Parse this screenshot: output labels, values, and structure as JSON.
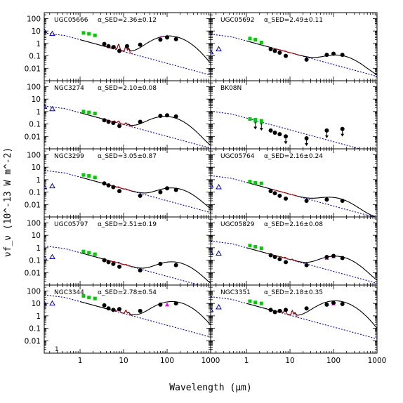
{
  "figure": {
    "xlabel": "Wavelength (μm)",
    "ylabel": "νf_ν (10^-13 W m^-2)",
    "corner_label": "1",
    "x_tick_labels": [
      "1",
      "10",
      "100",
      "1000"
    ],
    "y_tick_labels": [
      "100",
      "10",
      "1",
      "0.1",
      "0.01"
    ],
    "colors": {
      "model": "#000000",
      "stellar": "#0000cc",
      "pah": "#cc0000",
      "nir": "#00cc00",
      "far_ir_model": "#ff00ff",
      "data": "#000000"
    }
  },
  "chart_data": {
    "type": "scatter",
    "layout": "5 rows x 2 columns of SED panels",
    "x_scale": "log",
    "y_scale": "log",
    "xlim": [
      0.15,
      1000
    ],
    "ylim": [
      0.001,
      300
    ],
    "panels": [
      {
        "name": "UGC05666",
        "alpha_label": "α_SED=2.36±0.12",
        "norm": 2.0,
        "dust_norm": 4.0,
        "peak_um": 110,
        "uv": [
          [
            0.15,
            10
          ],
          [
            0.23,
            6
          ]
        ],
        "nir": [
          [
            1.2,
            7
          ],
          [
            1.6,
            6
          ],
          [
            2.2,
            4.5
          ]
        ],
        "fir_model": [
          [
            70,
            2.8
          ],
          [
            100,
            3.6
          ]
        ],
        "points": [
          [
            3.6,
            0.9
          ],
          [
            4.5,
            0.6
          ],
          [
            5.8,
            0.5
          ],
          [
            8,
            0.25
          ],
          [
            12,
            0.6
          ],
          [
            24,
            0.8
          ],
          [
            70,
            2.0
          ],
          [
            100,
            3.0
          ],
          [
            160,
            2.2
          ]
        ],
        "upper_limits": []
      },
      {
        "name": "UGC05692",
        "alpha_label": "α_SED=2.49±0.11",
        "norm": 1.6,
        "dust_norm": 0.1,
        "peak_um": 120,
        "uv": [
          [
            0.15,
            0.2
          ],
          [
            0.23,
            0.35
          ]
        ],
        "nir": [
          [
            1.2,
            2.5
          ],
          [
            1.6,
            2.0
          ],
          [
            2.2,
            1.2
          ]
        ],
        "fir_model": [],
        "points": [
          [
            3.6,
            0.35
          ],
          [
            4.5,
            0.25
          ],
          [
            5.8,
            0.18
          ],
          [
            8,
            0.1
          ],
          [
            24,
            0.05
          ],
          [
            70,
            0.12
          ],
          [
            100,
            0.15
          ],
          [
            160,
            0.12
          ]
        ],
        "upper_limits": []
      },
      {
        "name": "NGC3274",
        "alpha_label": "α_SED=2.10±0.08",
        "norm": 0.8,
        "dust_norm": 0.4,
        "peak_um": 90,
        "uv": [
          [
            0.15,
            2.5
          ],
          [
            0.23,
            1.6
          ]
        ],
        "nir": [
          [
            1.2,
            1.0
          ],
          [
            1.6,
            0.85
          ],
          [
            2.2,
            0.7
          ]
        ],
        "fir_model": [
          [
            100,
            0.5
          ]
        ],
        "points": [
          [
            3.6,
            0.2
          ],
          [
            4.5,
            0.15
          ],
          [
            5.8,
            0.12
          ],
          [
            8,
            0.07
          ],
          [
            24,
            0.15
          ],
          [
            70,
            0.45
          ],
          [
            100,
            0.5
          ],
          [
            160,
            0.4
          ]
        ],
        "upper_limits": []
      },
      {
        "name": "BK08N",
        "alpha_label": "",
        "norm": 0.3,
        "dust_norm": 0.0,
        "peak_um": 100,
        "uv": [],
        "nir": [
          [
            1.2,
            0.25
          ],
          [
            1.6,
            0.22
          ],
          [
            2.2,
            0.18
          ]
        ],
        "fir_model": [],
        "points": [
          [
            3.6,
            0.03
          ],
          [
            4.5,
            0.02
          ],
          [
            5.8,
            0.015
          ]
        ],
        "upper_limits": [
          [
            1.6,
            0.15
          ],
          [
            2.2,
            0.12
          ],
          [
            8,
            0.01
          ],
          [
            24,
            0.007
          ],
          [
            70,
            0.03
          ],
          [
            160,
            0.04
          ]
        ]
      },
      {
        "name": "NGC3299",
        "alpha_label": "α_SED=3.05±0.87",
        "norm": 1.6,
        "dust_norm": 0.2,
        "peak_um": 130,
        "uv": [
          [
            0.15,
            0.25
          ],
          [
            0.23,
            0.3
          ]
        ],
        "nir": [
          [
            1.2,
            2.4
          ],
          [
            1.6,
            2.0
          ],
          [
            2.2,
            1.5
          ]
        ],
        "fir_model": [],
        "points": [
          [
            3.6,
            0.5
          ],
          [
            4.5,
            0.35
          ],
          [
            5.8,
            0.25
          ],
          [
            8,
            0.12
          ],
          [
            24,
            0.05
          ],
          [
            70,
            0.1
          ],
          [
            100,
            0.2
          ],
          [
            160,
            0.15
          ]
        ],
        "upper_limits": []
      },
      {
        "name": "UGC05764",
        "alpha_label": "α_SED=2.16±0.24",
        "norm": 0.6,
        "dust_norm": 0.03,
        "peak_um": 90,
        "uv": [
          [
            0.15,
            0.35
          ],
          [
            0.23,
            0.25
          ]
        ],
        "nir": [
          [
            1.2,
            0.7
          ],
          [
            1.6,
            0.55
          ],
          [
            2.2,
            0.5
          ]
        ],
        "fir_model": [],
        "points": [
          [
            3.6,
            0.12
          ],
          [
            4.5,
            0.08
          ],
          [
            5.8,
            0.05
          ],
          [
            8,
            0.03
          ],
          [
            24,
            0.02
          ],
          [
            70,
            0.025
          ],
          [
            160,
            0.02
          ]
        ],
        "upper_limits": []
      },
      {
        "name": "UGC05797",
        "alpha_label": "α_SED=2.51±0.19",
        "norm": 0.4,
        "dust_norm": 0.07,
        "peak_um": 130,
        "uv": [
          [
            0.15,
            0.15
          ],
          [
            0.23,
            0.18
          ]
        ],
        "nir": [
          [
            1.2,
            0.5
          ],
          [
            1.6,
            0.4
          ],
          [
            2.2,
            0.3
          ]
        ],
        "fir_model": [],
        "points": [
          [
            3.6,
            0.1
          ],
          [
            4.5,
            0.07
          ],
          [
            5.8,
            0.05
          ],
          [
            8,
            0.03
          ],
          [
            24,
            0.015
          ],
          [
            70,
            0.05
          ],
          [
            160,
            0.04
          ]
        ],
        "upper_limits": []
      },
      {
        "name": "UGC05829",
        "alpha_label": "α_SED=2.16±0.08",
        "norm": 1.0,
        "dust_norm": 0.2,
        "peak_um": 110,
        "uv": [
          [
            0.15,
            0.4
          ],
          [
            0.23,
            0.35
          ]
        ],
        "nir": [
          [
            1.2,
            1.5
          ],
          [
            1.6,
            1.2
          ],
          [
            2.2,
            0.9
          ]
        ],
        "fir_model": [
          [
            70,
            0.15
          ],
          [
            100,
            0.2
          ]
        ],
        "points": [
          [
            3.6,
            0.25
          ],
          [
            4.5,
            0.18
          ],
          [
            5.8,
            0.12
          ],
          [
            8,
            0.07
          ],
          [
            24,
            0.04
          ],
          [
            70,
            0.18
          ],
          [
            100,
            0.22
          ],
          [
            160,
            0.15
          ]
        ],
        "upper_limits": []
      },
      {
        "name": "NGC3344",
        "alpha_label": "α_SED=2.78±0.54",
        "norm": 14.0,
        "dust_norm": 14.0,
        "peak_um": 130,
        "uv": [
          [
            0.15,
            10
          ],
          [
            0.23,
            10
          ]
        ],
        "nir": [
          [
            1.2,
            40
          ],
          [
            1.6,
            30
          ],
          [
            2.2,
            25
          ]
        ],
        "fir_model": [
          [
            100,
            8
          ]
        ],
        "points": [
          [
            3.6,
            7
          ],
          [
            4.5,
            4
          ],
          [
            5.8,
            3
          ],
          [
            8,
            3.5
          ],
          [
            24,
            2.5
          ],
          [
            70,
            8
          ],
          [
            160,
            10
          ]
        ],
        "upper_limits": []
      },
      {
        "name": "NGC3351",
        "alpha_label": "α_SED=2.18±0.35",
        "norm": 10.0,
        "dust_norm": 16.0,
        "peak_um": 110,
        "uv": [
          [
            0.15,
            3
          ],
          [
            0.23,
            5
          ]
        ],
        "nir": [
          [
            1.2,
            15
          ],
          [
            1.6,
            12
          ],
          [
            2.2,
            10
          ]
        ],
        "fir_model": [
          [
            100,
            10
          ]
        ],
        "points": [
          [
            3.6,
            3
          ],
          [
            4.5,
            2
          ],
          [
            5.8,
            2.5
          ],
          [
            8,
            3
          ],
          [
            24,
            4
          ],
          [
            70,
            8
          ],
          [
            100,
            11
          ],
          [
            160,
            9
          ]
        ],
        "upper_limits": []
      }
    ]
  }
}
